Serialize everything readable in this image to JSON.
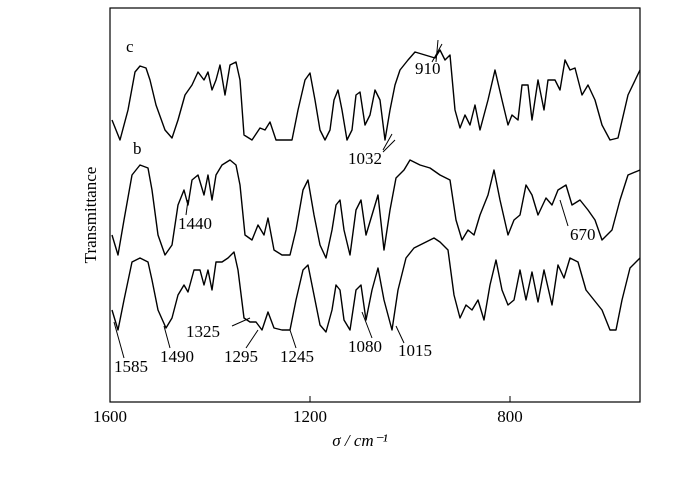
{
  "chart_data": {
    "type": "line",
    "xlabel": "σ / cm⁻¹",
    "ylabel": "Transmittance",
    "xlim": [
      1600,
      540
    ],
    "ylim": [
      0,
      394
    ],
    "xticks": [
      1600,
      1200,
      800
    ],
    "color": "#000000",
    "annotations": [
      "c",
      "b",
      "910",
      "1032",
      "1440",
      "670",
      "1325",
      "1295",
      "1245",
      "1080",
      "1015",
      "1585",
      "1490"
    ],
    "series": [
      {
        "x": [
          1596,
          1580,
          1564,
          1550,
          1540,
          1528,
          1520,
          1508,
          1490,
          1476,
          1464,
          1450,
          1436,
          1424,
          1412,
          1404,
          1396,
          1388,
          1380,
          1370,
          1360,
          1348,
          1340,
          1332,
          1316,
          1300,
          1290,
          1280,
          1268,
          1250,
          1236,
          1224,
          1210,
          1200,
          1190,
          1180,
          1170,
          1160,
          1152,
          1144,
          1136,
          1126,
          1116,
          1108,
          1100,
          1090,
          1080,
          1070,
          1060,
          1050,
          1040,
          1030,
          1020,
          1004,
          990,
          970,
          950,
          940,
          930,
          920,
          910,
          900,
          890,
          880,
          870,
          860,
          844,
          830,
          816,
          804,
          796,
          784,
          776,
          764,
          756,
          744,
          732,
          724,
          710,
          700,
          690,
          680,
          670,
          656,
          644,
          630,
          616,
          600,
          584,
          564,
          540
        ],
        "values": [
          282,
          262,
          292,
          330,
          336,
          334,
          322,
          297,
          272,
          264,
          282,
          307,
          317,
          330,
          322,
          330,
          312,
          322,
          337,
          307,
          337,
          340,
          322,
          267,
          262,
          274,
          272,
          280,
          262,
          262,
          262,
          292,
          322,
          329,
          302,
          272,
          262,
          272,
          302,
          312,
          292,
          262,
          272,
          307,
          310,
          277,
          287,
          312,
          302,
          262,
          292,
          317,
          332,
          342,
          350,
          347,
          344,
          352,
          342,
          347,
          292,
          274,
          287,
          277,
          297,
          272,
          302,
          332,
          302,
          277,
          287,
          282,
          317,
          317,
          282,
          322,
          292,
          322,
          322,
          312,
          342,
          332,
          334,
          307,
          317,
          302,
          277,
          262,
          264,
          307,
          332
        ]
      },
      {
        "x": [
          1596,
          1584,
          1572,
          1556,
          1540,
          1524,
          1516,
          1504,
          1490,
          1476,
          1464,
          1452,
          1444,
          1436,
          1424,
          1412,
          1404,
          1396,
          1388,
          1376,
          1360,
          1348,
          1340,
          1330,
          1316,
          1304,
          1292,
          1284,
          1272,
          1256,
          1240,
          1228,
          1214,
          1204,
          1192,
          1180,
          1168,
          1156,
          1148,
          1140,
          1132,
          1120,
          1108,
          1098,
          1088,
          1076,
          1064,
          1052,
          1040,
          1028,
          1012,
          1000,
          980,
          960,
          940,
          920,
          908,
          896,
          884,
          872,
          860,
          844,
          832,
          820,
          804,
          792,
          780,
          768,
          756,
          744,
          728,
          716,
          704,
          688,
          676,
          660,
          644,
          630,
          616,
          596,
          580,
          564,
          540
        ],
        "values": [
          167,
          147,
          182,
          227,
          237,
          234,
          212,
          167,
          147,
          157,
          197,
          212,
          197,
          222,
          227,
          207,
          227,
          202,
          227,
          237,
          242,
          237,
          217,
          167,
          162,
          177,
          167,
          184,
          152,
          147,
          147,
          172,
          212,
          222,
          187,
          157,
          144,
          172,
          197,
          202,
          172,
          147,
          192,
          202,
          167,
          187,
          207,
          152,
          192,
          224,
          232,
          242,
          237,
          234,
          227,
          222,
          182,
          162,
          172,
          167,
          187,
          207,
          232,
          202,
          167,
          182,
          187,
          217,
          207,
          187,
          204,
          197,
          212,
          217,
          197,
          202,
          192,
          182,
          162,
          172,
          202,
          227,
          232
        ]
      },
      {
        "x": [
          1596,
          1584,
          1572,
          1556,
          1540,
          1524,
          1516,
          1504,
          1488,
          1476,
          1464,
          1452,
          1444,
          1432,
          1420,
          1412,
          1404,
          1396,
          1388,
          1376,
          1364,
          1352,
          1344,
          1332,
          1320,
          1308,
          1296,
          1284,
          1272,
          1256,
          1240,
          1228,
          1214,
          1204,
          1192,
          1180,
          1168,
          1156,
          1148,
          1140,
          1132,
          1120,
          1108,
          1098,
          1088,
          1076,
          1064,
          1052,
          1036,
          1024,
          1008,
          992,
          972,
          952,
          940,
          924,
          912,
          900,
          888,
          876,
          864,
          852,
          840,
          828,
          816,
          804,
          792,
          780,
          768,
          756,
          744,
          732,
          716,
          704,
          692,
          680,
          664,
          648,
          632,
          616,
          600,
          588,
          576,
          560,
          540
        ],
        "values": [
          92,
          72,
          102,
          140,
          144,
          140,
          122,
          92,
          74,
          84,
          107,
          117,
          110,
          132,
          132,
          117,
          132,
          112,
          140,
          140,
          144,
          150,
          132,
          84,
          80,
          80,
          72,
          90,
          74,
          72,
          72,
          102,
          132,
          137,
          107,
          77,
          70,
          92,
          117,
          112,
          82,
          72,
          112,
          117,
          82,
          112,
          134,
          102,
          72,
          112,
          144,
          154,
          159,
          164,
          160,
          152,
          107,
          84,
          97,
          92,
          102,
          82,
          117,
          142,
          112,
          97,
          102,
          132,
          102,
          130,
          100,
          132,
          97,
          137,
          124,
          144,
          140,
          112,
          102,
          92,
          72,
          72,
          102,
          134,
          144
        ]
      }
    ]
  }
}
